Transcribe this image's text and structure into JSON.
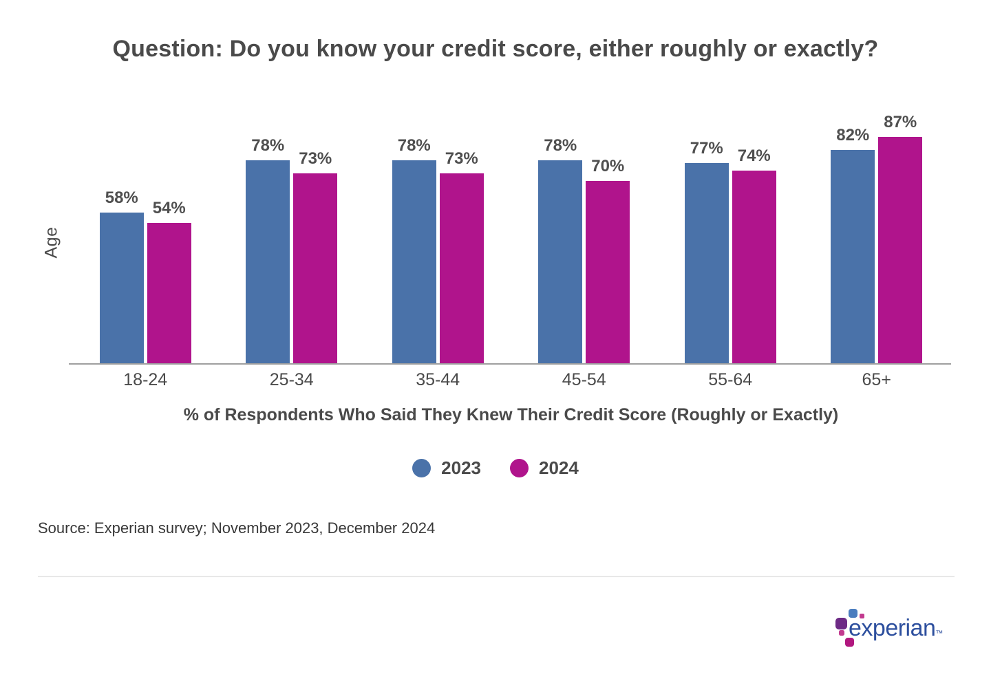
{
  "chart_data": {
    "type": "bar",
    "title": "Question: Do you know your credit score, either roughly or exactly?",
    "categories": [
      "18-24",
      "25-34",
      "35-44",
      "45-54",
      "55-64",
      "65+"
    ],
    "series": [
      {
        "name": "2023",
        "color": "#4A72A9",
        "values": [
          58,
          78,
          78,
          78,
          77,
          82
        ]
      },
      {
        "name": "2024",
        "color": "#B0148C",
        "values": [
          54,
          73,
          73,
          70,
          74,
          87
        ]
      }
    ],
    "value_suffix": "%",
    "xlabel": "% of Respondents Who Said They Knew Their Credit Score (Roughly or Exactly)",
    "ylabel": "Age",
    "ylim": [
      0,
      100
    ],
    "grid": false,
    "legend_position": "bottom"
  },
  "source_note": "Source: Experian survey; November 2023, December 2024",
  "footer": {
    "logo_text": "experian",
    "logo_trademark": "™",
    "logo_colors": {
      "text": "#2D4F9E",
      "blue_square": "#4A7DBF",
      "purple_square": "#6D2A85",
      "magenta_square": "#B1177F",
      "pink_dot": "#C23A8F"
    }
  }
}
